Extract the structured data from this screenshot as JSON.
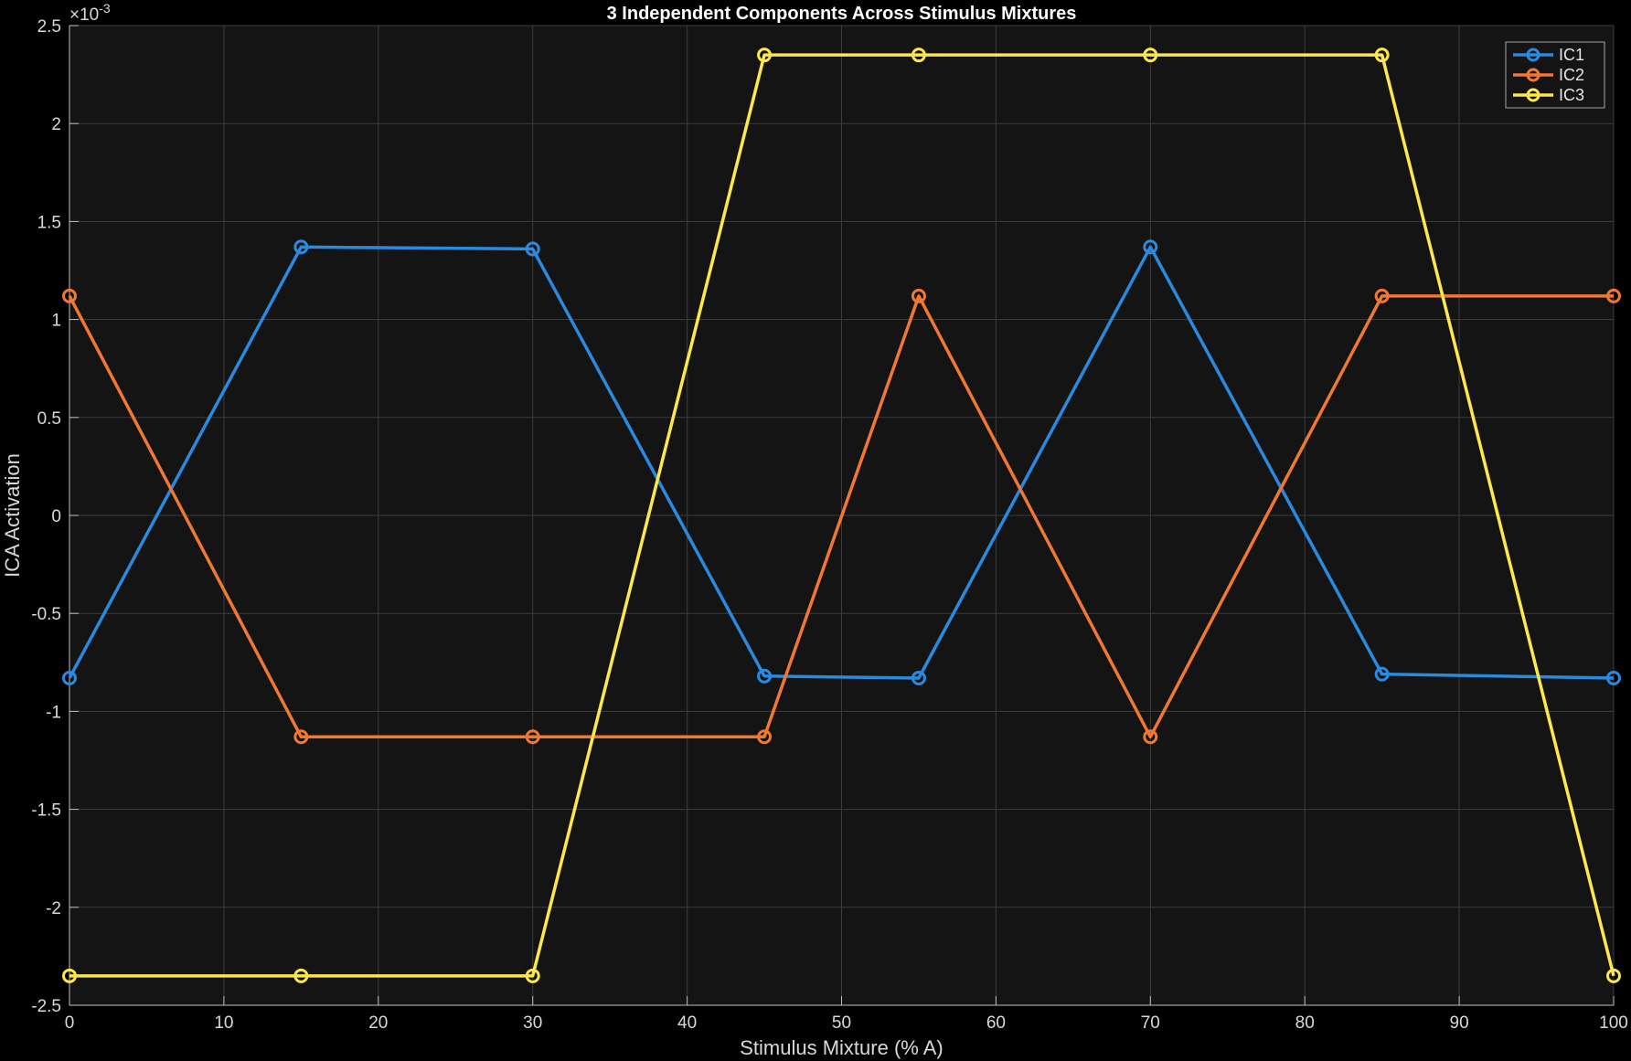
{
  "chart_data": {
    "type": "line",
    "title": "3 Independent Components Across Stimulus Mixtures",
    "xlabel": "Stimulus Mixture (% A)",
    "ylabel": "ICA Activation",
    "y_exponent_label": "×10",
    "y_exponent_power": "-3",
    "xlim": [
      0,
      100
    ],
    "ylim": [
      -2.5,
      2.5
    ],
    "x_ticks": [
      0,
      10,
      20,
      30,
      40,
      50,
      60,
      70,
      80,
      90,
      100
    ],
    "y_ticks": [
      -2.5,
      -2,
      -1.5,
      -1,
      -0.5,
      0,
      0.5,
      1,
      1.5,
      2,
      2.5
    ],
    "x_tick_labels": [
      "0",
      "10",
      "20",
      "30",
      "40",
      "50",
      "60",
      "70",
      "80",
      "90",
      "100"
    ],
    "y_tick_labels": [
      "-2.5",
      "-2",
      "-1.5",
      "-1",
      "-0.5",
      "0",
      "0.5",
      "1",
      "1.5",
      "2",
      "2.5"
    ],
    "grid": true,
    "legend_position": "top-right",
    "x": [
      0,
      15,
      30,
      45,
      55,
      70,
      85,
      100
    ],
    "series": [
      {
        "name": "IC1",
        "color": "#2a8ae0",
        "values": [
          -0.83,
          1.37,
          1.36,
          -0.82,
          -0.83,
          1.37,
          -0.81,
          -0.83
        ]
      },
      {
        "name": "IC2",
        "color": "#f07832",
        "values": [
          1.12,
          -1.13,
          -1.13,
          -1.13,
          1.12,
          -1.13,
          1.12,
          1.12
        ]
      },
      {
        "name": "IC3",
        "color": "#fde74c",
        "values": [
          -2.35,
          -2.35,
          -2.35,
          2.35,
          2.35,
          2.35,
          2.35,
          -2.35
        ]
      }
    ]
  }
}
